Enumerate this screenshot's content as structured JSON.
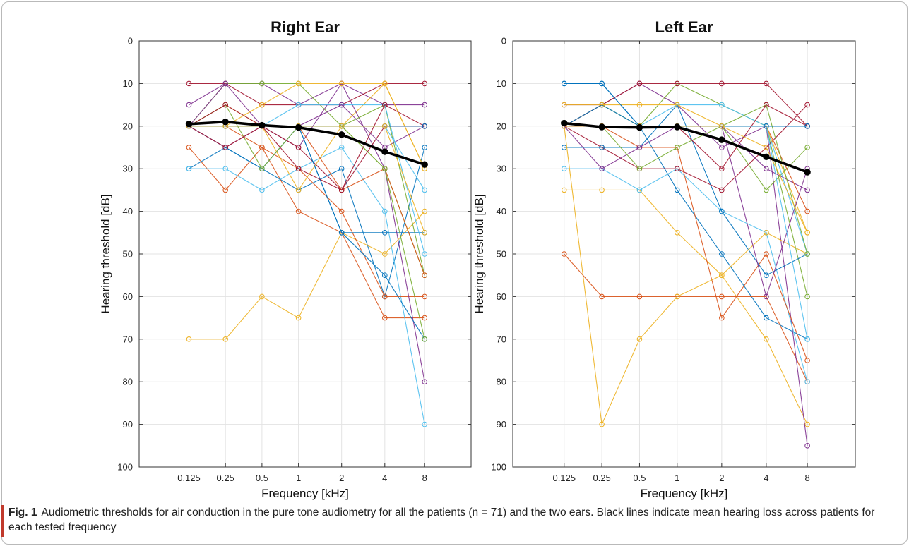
{
  "caption": {
    "label": "Fig. 1",
    "text": "Audiometric thresholds for air conduction in the pure tone audiometry for all the patients (n = 71) and the two ears. Black lines indicate mean hearing loss across patients for each tested frequency"
  },
  "chart_data": [
    {
      "type": "line",
      "title": "Right Ear",
      "xlabel": "Frequency [kHz]",
      "ylabel": "Hearing threshold [dB]",
      "categories": [
        "0.125",
        "0.25",
        "0.5",
        "1",
        "2",
        "4",
        "8"
      ],
      "yticks": [
        0,
        10,
        20,
        30,
        40,
        50,
        60,
        70,
        80,
        90,
        100
      ],
      "ylim": [
        0,
        100
      ],
      "y_reversed": true,
      "grid": true,
      "mean": [
        19.5,
        19,
        19.8,
        20.3,
        22,
        26,
        29
      ],
      "series": [
        {
          "color": "#0072BD",
          "values": [
            30,
            25,
            30,
            35,
            30,
            60,
            25
          ]
        },
        {
          "color": "#D95319",
          "values": [
            25,
            35,
            25,
            40,
            45,
            65,
            65
          ]
        },
        {
          "color": "#EDB120",
          "values": [
            70,
            70,
            60,
            65,
            45,
            50,
            40
          ]
        },
        {
          "color": "#7E2F8E",
          "values": [
            15,
            10,
            10,
            15,
            10,
            15,
            15
          ]
        },
        {
          "color": "#77AC30",
          "values": [
            20,
            10,
            10,
            10,
            20,
            30,
            55
          ]
        },
        {
          "color": "#4DBEEE",
          "values": [
            30,
            30,
            35,
            30,
            25,
            40,
            90
          ]
        },
        {
          "color": "#A2142F",
          "values": [
            10,
            10,
            15,
            15,
            15,
            10,
            10
          ]
        },
        {
          "color": "#0072BD",
          "values": [
            20,
            25,
            30,
            20,
            45,
            45,
            45
          ]
        },
        {
          "color": "#D95319",
          "values": [
            20,
            20,
            25,
            30,
            40,
            60,
            60
          ]
        },
        {
          "color": "#EDB120",
          "values": [
            20,
            15,
            20,
            35,
            20,
            10,
            30
          ]
        },
        {
          "color": "#7E2F8E",
          "values": [
            20,
            10,
            20,
            25,
            10,
            30,
            80
          ]
        },
        {
          "color": "#77AC30",
          "values": [
            20,
            15,
            30,
            20,
            20,
            15,
            55
          ]
        },
        {
          "color": "#4DBEEE",
          "values": [
            20,
            20,
            20,
            15,
            15,
            15,
            50
          ]
        },
        {
          "color": "#A2142F",
          "values": [
            20,
            15,
            20,
            25,
            35,
            15,
            20
          ]
        },
        {
          "color": "#0072BD",
          "values": [
            20,
            20,
            20,
            20,
            45,
            55,
            70
          ]
        },
        {
          "color": "#D95319",
          "values": [
            20,
            20,
            20,
            20,
            35,
            30,
            55
          ]
        },
        {
          "color": "#EDB120",
          "values": [
            20,
            20,
            15,
            10,
            10,
            10,
            30
          ]
        },
        {
          "color": "#7E2F8E",
          "values": [
            20,
            25,
            20,
            20,
            15,
            25,
            20
          ]
        },
        {
          "color": "#77AC30",
          "values": [
            20,
            20,
            20,
            20,
            20,
            30,
            70
          ]
        },
        {
          "color": "#4DBEEE",
          "values": [
            20,
            20,
            20,
            20,
            20,
            20,
            35
          ]
        },
        {
          "color": "#A2142F",
          "values": [
            20,
            25,
            20,
            30,
            35,
            20,
            20
          ]
        },
        {
          "color": "#0072BD",
          "values": [
            20,
            20,
            20,
            20,
            20,
            20,
            20
          ]
        },
        {
          "color": "#EDB120",
          "values": [
            20,
            20,
            20,
            20,
            20,
            20,
            45
          ]
        }
      ]
    },
    {
      "type": "line",
      "title": "Left Ear",
      "xlabel": "Frequency [kHz]",
      "ylabel": "Hearing threshold [dB]",
      "categories": [
        "0.125",
        "0.25",
        "0.5",
        "1",
        "2",
        "4",
        "8"
      ],
      "yticks": [
        0,
        10,
        20,
        30,
        40,
        50,
        60,
        70,
        80,
        90,
        100
      ],
      "ylim": [
        0,
        100
      ],
      "y_reversed": true,
      "grid": true,
      "mean": [
        19.3,
        20.2,
        20.3,
        20.2,
        23.2,
        27.2,
        30.8
      ],
      "series": [
        {
          "color": "#0072BD",
          "values": [
            10,
            10,
            20,
            35,
            50,
            65,
            70
          ]
        },
        {
          "color": "#D95319",
          "values": [
            50,
            60,
            60,
            60,
            60,
            60,
            80
          ]
        },
        {
          "color": "#EDB120",
          "values": [
            35,
            35,
            35,
            45,
            55,
            70,
            90
          ]
        },
        {
          "color": "#7E2F8E",
          "values": [
            15,
            15,
            10,
            15,
            25,
            20,
            95
          ]
        },
        {
          "color": "#77AC30",
          "values": [
            20,
            15,
            20,
            10,
            15,
            20,
            60
          ]
        },
        {
          "color": "#4DBEEE",
          "values": [
            30,
            30,
            35,
            30,
            40,
            45,
            80
          ]
        },
        {
          "color": "#A2142F",
          "values": [
            20,
            25,
            30,
            30,
            35,
            25,
            15
          ]
        },
        {
          "color": "#0072BD",
          "values": [
            25,
            25,
            25,
            15,
            40,
            55,
            50
          ]
        },
        {
          "color": "#D95319",
          "values": [
            20,
            20,
            25,
            25,
            65,
            50,
            75
          ]
        },
        {
          "color": "#EDB120",
          "values": [
            20,
            90,
            70,
            60,
            55,
            45,
            50
          ]
        },
        {
          "color": "#7E2F8E",
          "values": [
            20,
            30,
            25,
            20,
            20,
            30,
            35
          ]
        },
        {
          "color": "#77AC30",
          "values": [
            20,
            20,
            30,
            25,
            20,
            35,
            25
          ]
        },
        {
          "color": "#4DBEEE",
          "values": [
            20,
            20,
            20,
            15,
            15,
            20,
            50
          ]
        },
        {
          "color": "#A2142F",
          "values": [
            20,
            15,
            10,
            10,
            10,
            10,
            20
          ]
        },
        {
          "color": "#0072BD",
          "values": [
            20,
            15,
            20,
            20,
            20,
            20,
            20
          ]
        },
        {
          "color": "#D95319",
          "values": [
            20,
            20,
            20,
            20,
            20,
            20,
            40
          ]
        },
        {
          "color": "#EDB120",
          "values": [
            15,
            15,
            15,
            15,
            20,
            20,
            45
          ]
        },
        {
          "color": "#7E2F8E",
          "values": [
            20,
            20,
            20,
            20,
            20,
            60,
            30
          ]
        },
        {
          "color": "#77AC30",
          "values": [
            20,
            20,
            20,
            20,
            20,
            15,
            50
          ]
        },
        {
          "color": "#4DBEEE",
          "values": [
            20,
            20,
            20,
            20,
            20,
            20,
            70
          ]
        },
        {
          "color": "#A2142F",
          "values": [
            20,
            20,
            20,
            20,
            30,
            15,
            20
          ]
        },
        {
          "color": "#0072BD",
          "values": [
            10,
            10,
            20,
            20,
            20,
            20,
            20
          ]
        },
        {
          "color": "#EDB120",
          "values": [
            20,
            20,
            20,
            20,
            20,
            25,
            45
          ]
        }
      ]
    }
  ]
}
